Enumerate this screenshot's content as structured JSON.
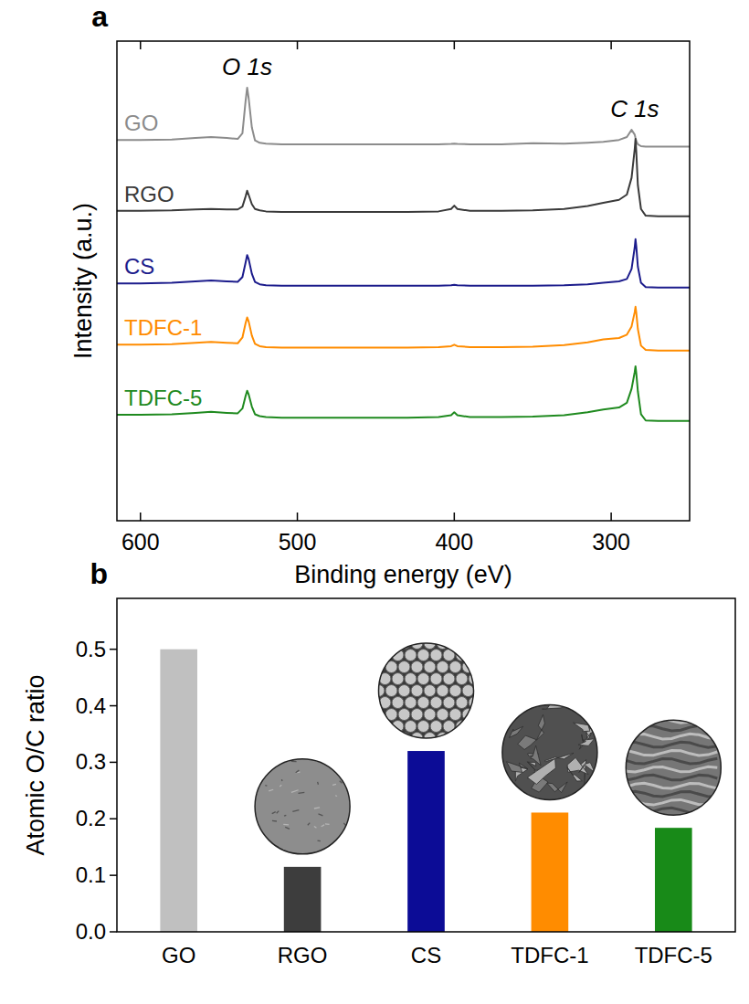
{
  "chart_data": [
    {
      "type": "line",
      "panel": "a",
      "x_label": "Binding energy (eV)",
      "y_label": "Intensity (a.u.)",
      "annotations": [
        {
          "text": "O 1s",
          "x": 532
        },
        {
          "text": "C 1s",
          "x": 285
        }
      ],
      "x": [
        615,
        600,
        580,
        565,
        555,
        545,
        538,
        535,
        533,
        532,
        531,
        529,
        527,
        524,
        520,
        510,
        490,
        470,
        450,
        430,
        410,
        402,
        400,
        398,
        390,
        370,
        350,
        330,
        315,
        305,
        295,
        290,
        287,
        285,
        284.5,
        284,
        283,
        281,
        278,
        270,
        260,
        250
      ],
      "series": [
        {
          "name": "GO",
          "color": "#8c8c8c",
          "values": [
            79.4,
            79.4,
            79.5,
            79.8,
            80.0,
            79.8,
            79.6,
            80.8,
            87.5,
            90.3,
            88.0,
            82.0,
            79.3,
            78.8,
            78.6,
            78.5,
            78.5,
            78.5,
            78.5,
            78.5,
            78.5,
            78.55,
            78.6,
            78.55,
            78.5,
            78.5,
            78.7,
            78.6,
            78.8,
            79.0,
            79.4,
            80.0,
            81.5,
            80.5,
            79.8,
            79.2,
            78.5,
            78.1,
            78.0,
            78.0,
            78.0,
            78.0
          ]
        },
        {
          "name": "RGO",
          "color": "#3a3a3a",
          "values": [
            64.6,
            64.6,
            64.7,
            64.9,
            65.0,
            64.9,
            64.9,
            65.5,
            67.6,
            68.8,
            67.9,
            66.0,
            65.0,
            64.7,
            64.5,
            64.4,
            64.4,
            64.4,
            64.4,
            64.4,
            64.5,
            65.0,
            65.7,
            65.0,
            64.6,
            64.6,
            64.7,
            65.0,
            65.6,
            66.3,
            66.9,
            68.0,
            71.5,
            77.5,
            79.6,
            77.0,
            70.0,
            65.0,
            63.6,
            63.5,
            63.5,
            63.5
          ]
        },
        {
          "name": "CS",
          "color": "#1c1c8c",
          "values": [
            49.5,
            49.5,
            49.6,
            49.9,
            50.1,
            49.9,
            49.8,
            50.8,
            53.8,
            55.4,
            54.5,
            51.5,
            49.8,
            49.3,
            49.1,
            49.0,
            49.0,
            49.0,
            49.0,
            49.0,
            49.0,
            49.1,
            49.2,
            49.1,
            49.0,
            49.0,
            49.0,
            49.1,
            49.3,
            49.6,
            49.9,
            50.4,
            52.5,
            57.0,
            58.7,
            57.2,
            53.0,
            49.6,
            48.7,
            48.6,
            48.6,
            48.6
          ]
        },
        {
          "name": "TDFC-1",
          "color": "#ff8c00",
          "values": [
            36.7,
            36.7,
            36.8,
            37.1,
            37.3,
            37.1,
            37.0,
            38.2,
            41.2,
            42.4,
            41.5,
            38.6,
            36.9,
            36.4,
            36.2,
            36.1,
            36.1,
            36.1,
            36.1,
            36.1,
            36.2,
            36.4,
            36.7,
            36.4,
            36.2,
            36.2,
            36.3,
            36.6,
            37.2,
            37.8,
            38.1,
            38.8,
            40.5,
            43.5,
            44.6,
            43.4,
            40.0,
            36.5,
            35.6,
            35.5,
            35.5,
            35.5
          ]
        },
        {
          "name": "TDFC-5",
          "color": "#1f8a1f",
          "values": [
            22.1,
            22.1,
            22.2,
            22.5,
            22.7,
            22.5,
            22.4,
            23.4,
            26.0,
            27.1,
            26.3,
            23.8,
            22.2,
            21.8,
            21.6,
            21.5,
            21.5,
            21.5,
            21.5,
            21.5,
            21.6,
            22.0,
            22.6,
            22.0,
            21.6,
            21.6,
            21.7,
            22.0,
            22.6,
            23.2,
            23.6,
            24.6,
            27.5,
            31.0,
            32.2,
            30.8,
            27.0,
            22.2,
            20.9,
            20.8,
            20.8,
            20.8
          ]
        }
      ],
      "xlim": [
        615,
        250
      ],
      "ylim": [
        0,
        100
      ],
      "xticks": [
        600,
        500,
        400,
        300
      ],
      "tick_labels": "x"
    },
    {
      "type": "bar",
      "panel": "b",
      "y_label": "Atomic O/C ratio",
      "categories": [
        "GO",
        "RGO",
        "CS",
        "TDFC-1",
        "TDFC-5"
      ],
      "values": [
        0.5,
        0.115,
        0.32,
        0.211,
        0.184
      ],
      "colors": [
        "#c0c0c0",
        "#3d3d3d",
        "#0c0c96",
        "#ff8c00",
        "#188a18"
      ],
      "ylim": [
        0,
        0.59
      ],
      "yticks": [
        {
          "value": 0,
          "label": "0.0"
        },
        0.1,
        0.2,
        0.3,
        0.4,
        0.5
      ]
    }
  ]
}
